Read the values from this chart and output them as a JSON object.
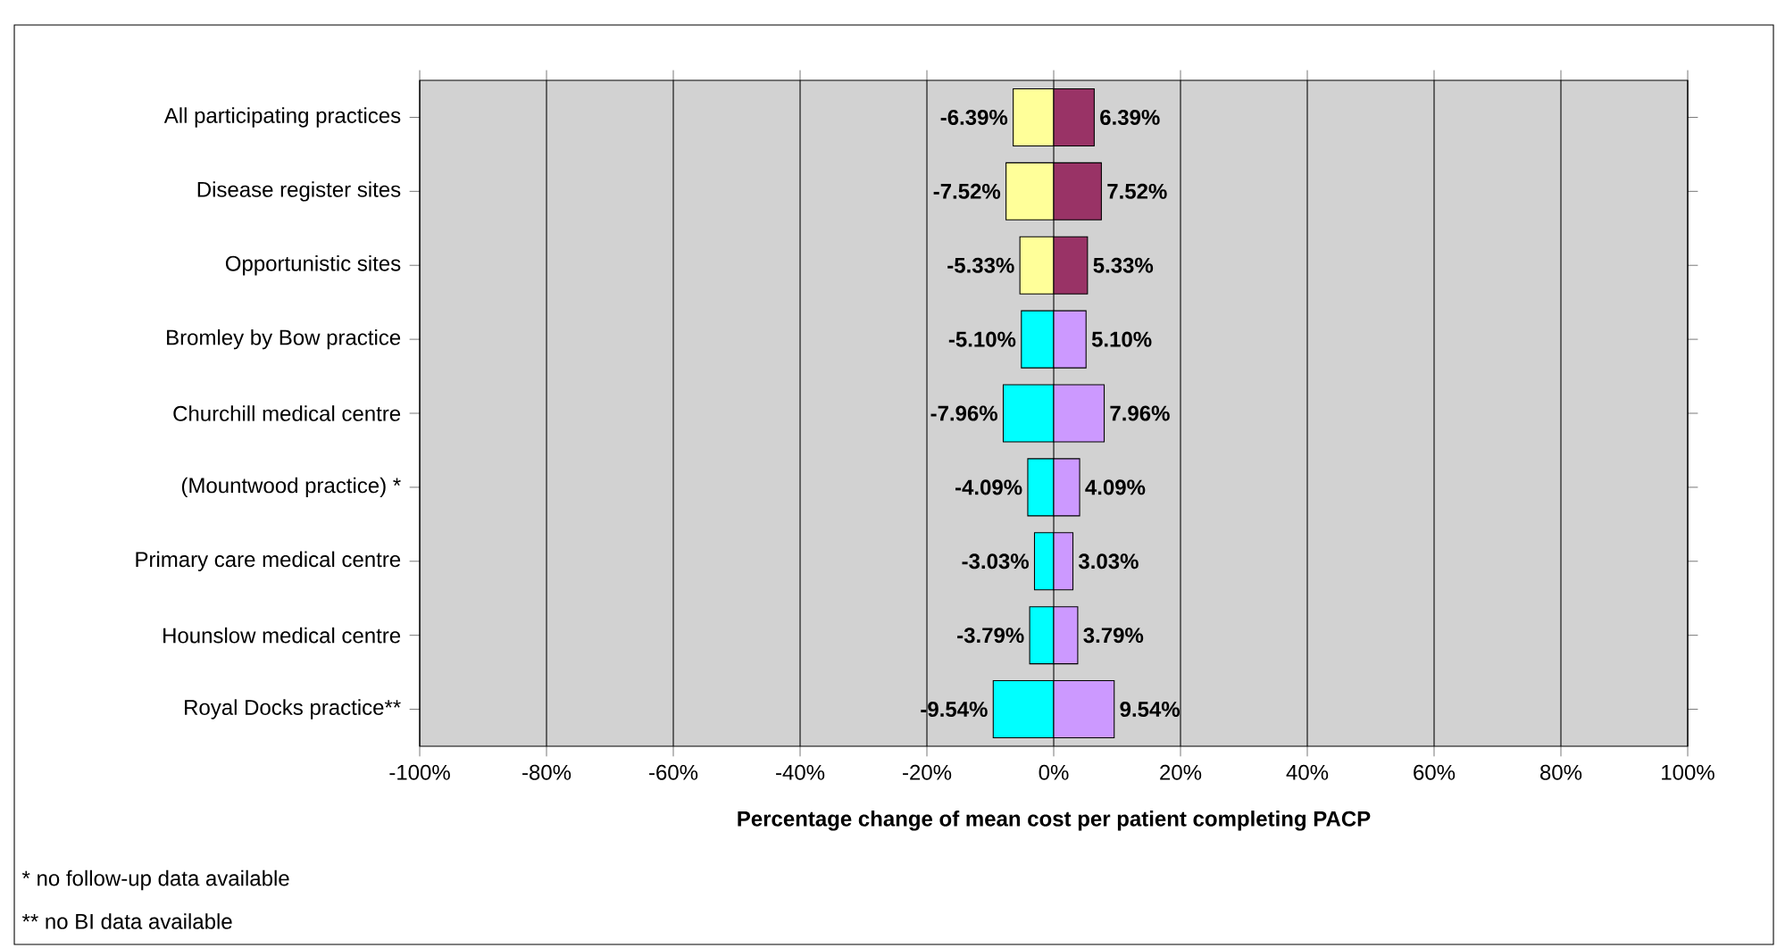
{
  "chart_data": {
    "type": "bar",
    "orientation": "horizontal",
    "xlabel": "Percentage change of mean cost per patient completing PACP",
    "categories": [
      "All participating practices",
      "Disease register sites",
      "Opportunistic sites",
      "Bromley by Bow practice",
      "Churchill medical centre",
      "(Mountwood practice) *",
      "Primary care medical centre",
      "Hounslow medical centre",
      "Royal Docks practice**"
    ],
    "series": [
      {
        "colors": [
          "#ffff99",
          "#ffff99",
          "#ffff99",
          "#00ffff",
          "#00ffff",
          "#00ffff",
          "#00ffff",
          "#00ffff",
          "#00ffff"
        ],
        "values": [
          -6.39,
          -7.52,
          -5.33,
          -5.1,
          -7.96,
          -4.09,
          -3.03,
          -3.79,
          -9.54
        ],
        "value_labels": [
          "-6.39%",
          "-7.52%",
          "-5.33%",
          "-5.10%",
          "-7.96%",
          "-4.09%",
          "-3.03%",
          "-3.79%",
          "-9.54%"
        ]
      },
      {
        "colors": [
          "#993366",
          "#993366",
          "#993366",
          "#cc99ff",
          "#cc99ff",
          "#cc99ff",
          "#cc99ff",
          "#cc99ff",
          "#cc99ff"
        ],
        "values": [
          6.39,
          7.52,
          5.33,
          5.1,
          7.96,
          4.09,
          3.03,
          3.79,
          9.54
        ],
        "value_labels": [
          "6.39%",
          "7.52%",
          "5.33%",
          "5.10%",
          "7.96%",
          "4.09%",
          "3.03%",
          "3.79%",
          "9.54%"
        ]
      }
    ],
    "xlim": [
      -100,
      100
    ],
    "xticks": [
      {
        "value": -100,
        "label": "-100%"
      },
      {
        "value": -80,
        "label": "-80%"
      },
      {
        "value": -60,
        "label": "-60%"
      },
      {
        "value": -40,
        "label": "-40%"
      },
      {
        "value": -20,
        "label": "-20%"
      },
      {
        "value": 0,
        "label": "0%"
      },
      {
        "value": 20,
        "label": "20%"
      },
      {
        "value": 40,
        "label": "40%"
      },
      {
        "value": 60,
        "label": "60%"
      },
      {
        "value": 80,
        "label": "80%"
      },
      {
        "value": 100,
        "label": "100%"
      }
    ],
    "grid": "x",
    "stacked": true,
    "annotations": [
      "*  no follow-up data available",
      "** no BI data available"
    ]
  }
}
